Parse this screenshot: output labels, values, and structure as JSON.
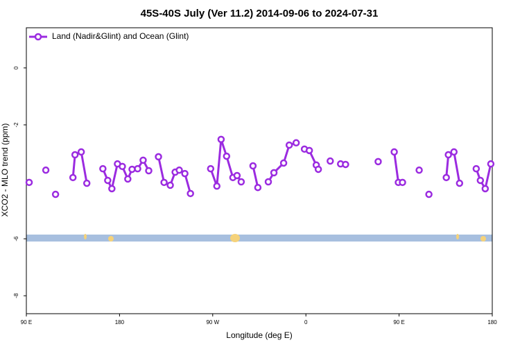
{
  "chart_data": {
    "type": "line",
    "title": "45S-40S July (Ver 11.2)   2014-09-06 to 2024-07-31",
    "x_label": "Longitude (deg E)",
    "y_label": "XCO2 - MLO trend (ppm)",
    "xlim": [
      90,
      540
    ],
    "xticks": [
      {
        "value": 90,
        "label": "90 E"
      },
      180,
      {
        "value": 270,
        "label": "90 W"
      },
      {
        "value": 360,
        "label": "0"
      },
      {
        "value": 450,
        "label": "90 E"
      },
      {
        "value": 540,
        "label": "180"
      }
    ],
    "ylim": [
      -8.63,
      1.41
    ],
    "yticks": [
      0,
      -2,
      -6,
      -8
    ],
    "legend": "upper left",
    "series": [
      {
        "name": "Land (Nadir&Glint) and Ocean (Glint)",
        "color": "#9b2be0",
        "x": [
          92.7,
          null,
          108.8,
          null,
          118.2,
          null,
          135,
          137,
          143,
          148.4,
          null,
          163.9,
          168.6,
          172.6,
          178,
          182.7,
          188,
          192.1,
          197.5,
          202.8,
          208.2,
          null,
          217.6,
          223,
          229,
          233.7,
          237.7,
          243.1,
          248.5,
          null,
          268,
          274,
          278.1,
          283.4,
          289.5,
          293.5,
          297.5,
          null,
          308.9,
          313.6,
          null,
          323.7,
          329.1,
          338.5,
          343.9,
          350.6,
          null,
          358.6,
          363.3,
          370,
          372,
          null,
          383.5,
          null,
          393.5,
          398.3,
          null,
          429.8,
          null,
          445.3,
          449.3,
          453.3,
          null,
          469.4,
          null,
          478.8,
          null,
          495.6,
          497.6,
          503,
          508.4,
          null,
          524.5,
          528.5,
          533.2,
          538.6
        ],
        "values": [
          -4.02,
          null,
          -3.59,
          null,
          -4.44,
          null,
          -3.85,
          -3.05,
          -2.95,
          -4.05,
          null,
          -3.54,
          -3.95,
          -4.24,
          -3.37,
          -3.46,
          -3.9,
          -3.56,
          -3.54,
          -3.24,
          -3.61,
          null,
          -3.12,
          -4.02,
          -4.12,
          -3.66,
          -3.59,
          -3.71,
          -4.41,
          null,
          -3.54,
          -4.15,
          -2.51,
          -3.1,
          -3.85,
          -3.78,
          -4.0,
          null,
          -3.44,
          -4.2,
          null,
          -4.0,
          -3.68,
          -3.34,
          -2.71,
          -2.63,
          null,
          -2.85,
          -2.9,
          -3.41,
          -3.56,
          null,
          -3.27,
          null,
          -3.37,
          -3.39,
          null,
          -3.29,
          null,
          -2.95,
          -4.02,
          -4.02,
          null,
          -3.59,
          null,
          -4.44,
          null,
          -3.85,
          -3.05,
          -2.95,
          -4.05,
          null,
          -3.54,
          -3.95,
          -4.24,
          -3.37
        ]
      }
    ]
  }
}
